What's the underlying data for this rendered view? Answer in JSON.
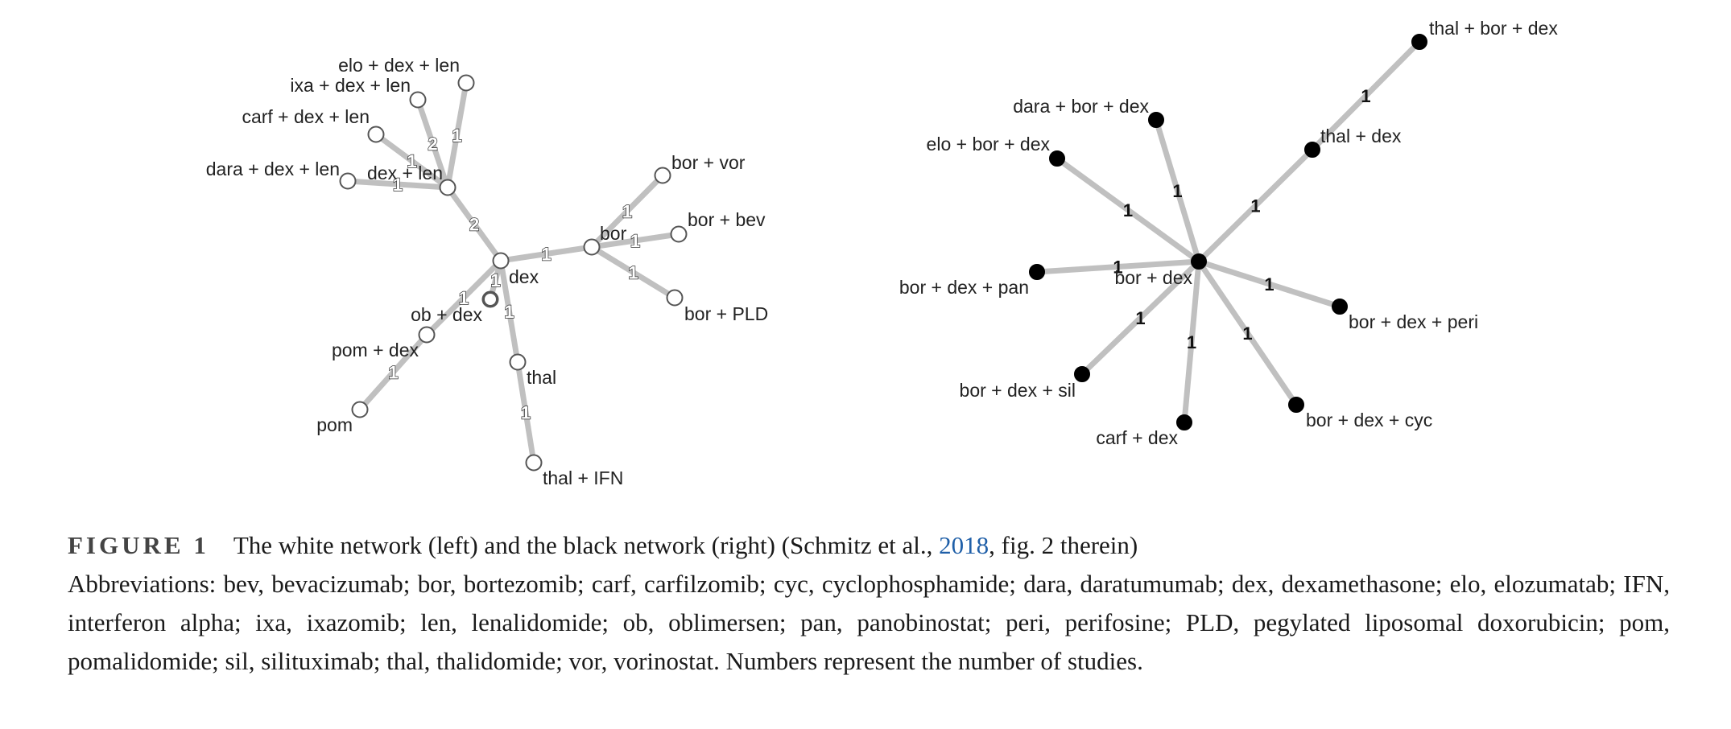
{
  "caption": {
    "figure_label": "FIGURE 1",
    "text_before_link": "The white network (left) and the black network (right) (Schmitz et al., ",
    "link_text": "2018",
    "text_after_link": ", fig. 2 therein)",
    "abbreviations": "Abbreviations: bev, bevacizumab; bor, bortezomib; carf, carfilzomib; cyc, cyclophosphamide; dara, daratumumab; dex, dexamethasone; elo, elozumatab; IFN, interferon alpha; ixa, ixazomib; len, lenalidomide; ob, oblimersen; pan, panobinostat; peri, perifosine; PLD, pegylated liposomal doxorubicin; pom, pomalidomide; sil, silituximab; thal, thalidomide; vor, vorinostat. Numbers represent the number of studies."
  },
  "networks": [
    {
      "id": "white",
      "node_style": "white",
      "nodes": [
        {
          "id": "elo+dex+len",
          "label": "elo + dex + len"
        },
        {
          "id": "ixa+dex+len",
          "label": "ixa + dex + len"
        },
        {
          "id": "carf+dex+len",
          "label": "carf + dex + len"
        },
        {
          "id": "dara+dex+len",
          "label": "dara + dex + len"
        },
        {
          "id": "dex+len",
          "label": "dex + len"
        },
        {
          "id": "dex",
          "label": "dex"
        },
        {
          "id": "bor",
          "label": "bor"
        },
        {
          "id": "bor+vor",
          "label": "bor + vor"
        },
        {
          "id": "bor+bev",
          "label": "bor + bev"
        },
        {
          "id": "bor+PLD",
          "label": "bor + PLD"
        },
        {
          "id": "ob+dex",
          "label": "ob + dex"
        },
        {
          "id": "pom+dex",
          "label": "pom + dex"
        },
        {
          "id": "pom",
          "label": "pom"
        },
        {
          "id": "thal",
          "label": "thal"
        },
        {
          "id": "thal+IFN",
          "label": "thal + IFN"
        }
      ],
      "edges": [
        {
          "source": "dex+len",
          "target": "elo+dex+len",
          "studies": "1"
        },
        {
          "source": "dex+len",
          "target": "ixa+dex+len",
          "studies": "2"
        },
        {
          "source": "dex+len",
          "target": "carf+dex+len",
          "studies": "1"
        },
        {
          "source": "dex+len",
          "target": "dara+dex+len",
          "studies": "1"
        },
        {
          "source": "dex",
          "target": "dex+len",
          "studies": "2"
        },
        {
          "source": "dex",
          "target": "bor",
          "studies": "1"
        },
        {
          "source": "bor",
          "target": "bor+vor",
          "studies": "1"
        },
        {
          "source": "bor",
          "target": "bor+bev",
          "studies": "1"
        },
        {
          "source": "bor",
          "target": "bor+PLD",
          "studies": "1"
        },
        {
          "source": "dex",
          "target": "ob+dex",
          "studies": "1"
        },
        {
          "source": "dex",
          "target": "pom+dex",
          "studies": "1"
        },
        {
          "source": "pom+dex",
          "target": "pom",
          "studies": "1"
        },
        {
          "source": "dex",
          "target": "thal",
          "studies": "1"
        },
        {
          "source": "thal",
          "target": "thal+IFN",
          "studies": "1"
        }
      ]
    },
    {
      "id": "black",
      "node_style": "black",
      "nodes": [
        {
          "id": "thal+bor+dex",
          "label": "thal + bor + dex"
        },
        {
          "id": "thal+dex",
          "label": "thal + dex"
        },
        {
          "id": "dara+bor+dex",
          "label": "dara + bor + dex"
        },
        {
          "id": "elo+bor+dex",
          "label": "elo + bor + dex"
        },
        {
          "id": "bor+dex",
          "label": "bor + dex"
        },
        {
          "id": "bor+dex+pan",
          "label": "bor + dex + pan"
        },
        {
          "id": "bor+dex+peri",
          "label": "bor + dex + peri"
        },
        {
          "id": "bor+dex+sil",
          "label": "bor + dex + sil"
        },
        {
          "id": "carf+dex",
          "label": "carf + dex"
        },
        {
          "id": "bor+dex+cyc",
          "label": "bor + dex + cyc"
        }
      ],
      "edges": [
        {
          "source": "thal+dex",
          "target": "thal+bor+dex",
          "studies": "1"
        },
        {
          "source": "bor+dex",
          "target": "thal+dex",
          "studies": "1"
        },
        {
          "source": "bor+dex",
          "target": "dara+bor+dex",
          "studies": "1"
        },
        {
          "source": "bor+dex",
          "target": "elo+bor+dex",
          "studies": "1"
        },
        {
          "source": "bor+dex",
          "target": "bor+dex+pan",
          "studies": "1"
        },
        {
          "source": "bor+dex",
          "target": "bor+dex+peri",
          "studies": "1"
        },
        {
          "source": "bor+dex",
          "target": "bor+dex+sil",
          "studies": "1"
        },
        {
          "source": "bor+dex",
          "target": "carf+dex",
          "studies": "1"
        },
        {
          "source": "bor+dex",
          "target": "bor+dex+cyc",
          "studies": "1"
        }
      ]
    }
  ]
}
